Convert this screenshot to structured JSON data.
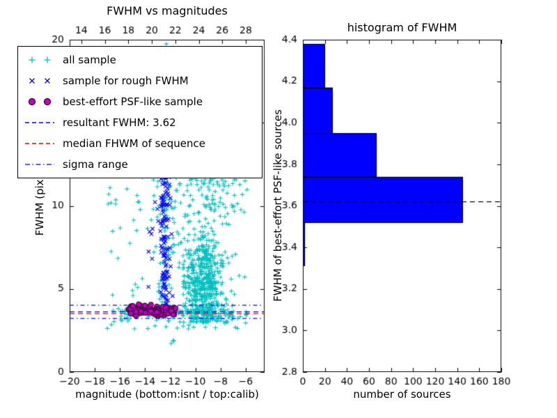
{
  "figure": {
    "background": "#ffffff",
    "foreground": "#000000"
  },
  "legend": {
    "entries": [
      {
        "label": "all sample",
        "marker": "plus",
        "color": "#00BFBF"
      },
      {
        "label": "sample for rough FWHM",
        "marker": "x",
        "color": "#0000FF"
      },
      {
        "label": "best-effort PSF-like sample",
        "marker": "circle",
        "color": "#BF00BF",
        "edge": "#3A0A3A"
      },
      {
        "label": "resultant FWHM: 3.62",
        "marker": "dashed-line",
        "color": "#0000FF"
      },
      {
        "label": "median FHWM of sequence",
        "marker": "dashed-line",
        "color": "#FF0000"
      },
      {
        "label": "sigma range",
        "marker": "dashdot-line",
        "color": "#0000FF"
      }
    ]
  },
  "chart_data": [
    {
      "type": "scatter",
      "title": "FWHM vs magnitudes",
      "xlabel": "magnitude (bottom:isnt / top:calib)",
      "ylabel": "FWHM (pix)",
      "xlim": [
        -20,
        -4.5
      ],
      "ylim": [
        0,
        20
      ],
      "grid": false,
      "legend_position": "upper-left",
      "xticks": {
        "values": [
          -20,
          -18,
          -16,
          -14,
          -12,
          -10,
          -8,
          -6
        ],
        "labels": [
          "−20",
          "−18",
          "−16",
          "−14",
          "−12",
          "−10",
          "−8",
          "−6"
        ]
      },
      "top_axis": {
        "lim": [
          13.0,
          29.6
        ],
        "ticks": [
          14,
          16,
          18,
          20,
          22,
          24,
          26,
          28
        ],
        "labels": [
          "14",
          "16",
          "18",
          "20",
          "22",
          "24",
          "26",
          "28"
        ]
      },
      "yticks": {
        "values": [
          0,
          5,
          10,
          15,
          20
        ],
        "labels": [
          "0",
          "5",
          "10",
          "15",
          "20"
        ]
      },
      "series": [
        {
          "name": "all sample",
          "marker": "+",
          "color": "#00BFBF",
          "clusters": [
            {
              "n": 360,
              "x": {
                "type": "gauss",
                "mu": -9.4,
                "sd": 0.75
              },
              "y": {
                "type": "gauss",
                "mu": 5.4,
                "sd": 1.35
              },
              "clip_y": [
                2.7,
                19.8
              ]
            },
            {
              "n": 220,
              "x": {
                "type": "gauss",
                "mu": -9.2,
                "sd": 1.0
              },
              "y": {
                "type": "pow",
                "min": 3.0,
                "span": 9.5,
                "p": 1.8
              }
            },
            {
              "n": 70,
              "x": {
                "type": "gauss",
                "mu": -9.0,
                "sd": 1.3
              },
              "y": {
                "type": "uniform",
                "min": 9.5,
                "max": 14.5
              }
            },
            {
              "n": 70,
              "x": {
                "type": "gauss",
                "mu": -12.4,
                "sd": 0.45
              },
              "y": {
                "type": "uniform",
                "min": 3.4,
                "max": 12.0
              }
            },
            {
              "n": 120,
              "x": {
                "type": "uniform",
                "min": -17.0,
                "max": -5.8
              },
              "y": {
                "type": "pow",
                "min": 2.6,
                "span": 11.0,
                "p": 1.6
              }
            },
            {
              "n": 45,
              "x": {
                "type": "uniform",
                "min": -17.0,
                "max": -5.8
              },
              "y": {
                "type": "uniform",
                "min": 9.8,
                "max": 13.5
              }
            },
            {
              "n": 110,
              "x": {
                "type": "uniform",
                "min": -16.2,
                "max": -5.9
              },
              "y": {
                "type": "gauss",
                "mu": 3.55,
                "sd": 0.13
              }
            },
            {
              "n": 4,
              "x": {
                "type": "uniform",
                "min": -13.2,
                "max": -11.6
              },
              "y": {
                "type": "uniform",
                "min": 18.6,
                "max": 19.9
              }
            },
            {
              "n": 3,
              "x": {
                "type": "uniform",
                "min": -12.3,
                "max": -10.6
              },
              "y": {
                "type": "uniform",
                "min": 1.6,
                "max": 2.3
              }
            }
          ]
        },
        {
          "name": "sample for rough FWHM",
          "marker": "x",
          "color": "#0000FF",
          "clusters": [
            {
              "n": 115,
              "x": {
                "type": "gauss",
                "mu": -12.45,
                "sd": 0.16
              },
              "y": {
                "type": "uniform",
                "min": 3.6,
                "max": 12.3
              }
            },
            {
              "n": 18,
              "x": {
                "type": "gauss",
                "mu": -12.35,
                "sd": 0.5
              },
              "y": {
                "type": "uniform",
                "min": 3.8,
                "max": 11.5
              }
            },
            {
              "n": 6,
              "x": {
                "type": "gauss",
                "mu": -13.45,
                "sd": 0.22
              },
              "y": {
                "type": "uniform",
                "min": 4.5,
                "max": 9.5
              }
            }
          ]
        },
        {
          "name": "best-effort PSF-like sample",
          "marker": "o",
          "color": "#BF00BF",
          "edge_color": "#3A0A3A",
          "clusters": [
            {
              "n": 150,
              "x": {
                "type": "uniform",
                "min": -15.35,
                "max": -11.55
              },
              "y": {
                "type": "gauss",
                "mu": 3.68,
                "sd": 0.14
              },
              "clip_y": [
                3.36,
                4.1
              ]
            },
            {
              "n": 8,
              "x": {
                "type": "uniform",
                "min": -15.1,
                "max": -13.4
              },
              "y": {
                "type": "uniform",
                "min": 3.95,
                "max": 4.12
              }
            }
          ]
        }
      ],
      "hlines": [
        {
          "name": "resultant FWHM",
          "y": 3.62,
          "color": "#0000FF",
          "style": "dashed"
        },
        {
          "name": "median FHWM of sequence",
          "y": 3.52,
          "color": "#FF0000",
          "style": "dashed"
        },
        {
          "name": "sigma range upper",
          "y": 4.02,
          "color": "#0000FF",
          "style": "dashdot"
        },
        {
          "name": "sigma range lower",
          "y": 3.22,
          "color": "#0000FF",
          "style": "dashdot"
        }
      ]
    },
    {
      "type": "bar",
      "orientation": "horizontal",
      "title": "histogram of FWHM",
      "xlabel": "number of sources",
      "ylabel": "FWHM of best-effort PSF-like sources",
      "xlim": [
        0,
        180
      ],
      "ylim": [
        2.8,
        4.4
      ],
      "grid": false,
      "bin_edges": [
        3.31,
        3.52,
        3.74,
        3.95,
        4.17,
        4.38
      ],
      "counts": [
        2,
        145,
        67,
        27,
        20
      ],
      "bar_color": "#0000FF",
      "bar_edge_color": "#000000",
      "marker_line": {
        "y": 3.62,
        "color": "#000000",
        "style": "dashed"
      },
      "xticks": {
        "values": [
          0,
          20,
          40,
          60,
          80,
          100,
          120,
          140,
          160,
          180
        ],
        "labels": [
          "0",
          "20",
          "40",
          "60",
          "80",
          "100",
          "120",
          "140",
          "160",
          "180"
        ]
      },
      "yticks": {
        "values": [
          2.8,
          3.0,
          3.2,
          3.4,
          3.6,
          3.8,
          4.0,
          4.2,
          4.4
        ],
        "labels": [
          "2.8",
          "3.0",
          "3.2",
          "3.4",
          "3.6",
          "3.8",
          "4.0",
          "4.2",
          "4.4"
        ]
      }
    }
  ]
}
